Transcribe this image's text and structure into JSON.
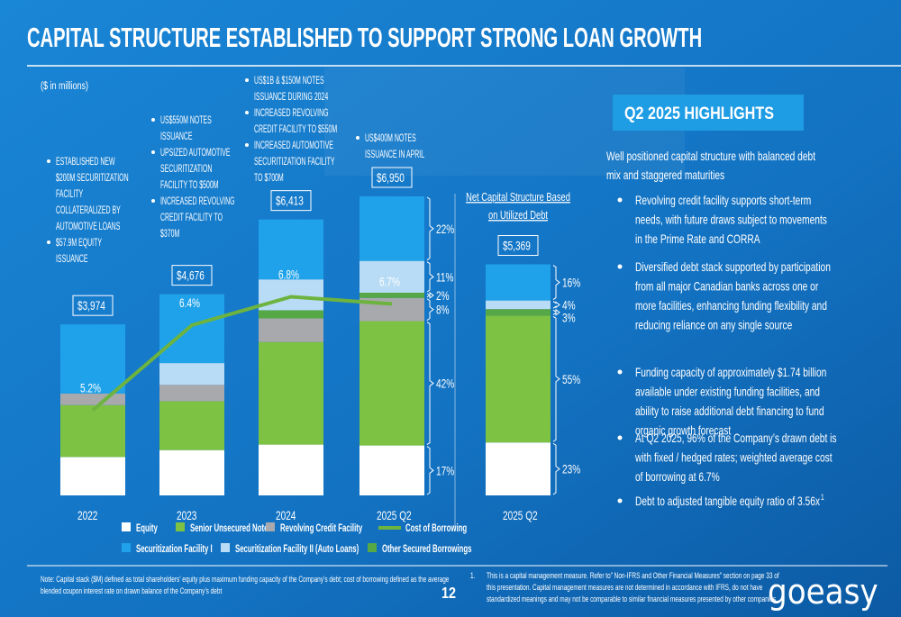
{
  "title": "CAPITAL STRUCTURE ESTABLISHED TO SUPPORT STRONG LOAN GROWTH",
  "units_note": "($ in millions)",
  "chart_data": [
    {
      "type": "bar",
      "stacked": true,
      "categories": [
        "2022",
        "2023",
        "2024",
        "2025 Q2"
      ],
      "series": [
        {
          "name": "Equity",
          "color": "#ffffff",
          "values": [
            893,
            1053,
            1181,
            1160
          ],
          "share_labels": [
            null,
            null,
            null,
            "17%"
          ]
        },
        {
          "name": "Senior Unsecured Note",
          "color": "#7dc242",
          "values": [
            1206,
            1137,
            2384,
            2890
          ],
          "share_labels": [
            null,
            null,
            null,
            "42%"
          ]
        },
        {
          "name": "Revolving Credit Facility",
          "color": "#a7a9ac",
          "values": [
            268,
            379,
            548,
            540
          ],
          "share_labels": [
            null,
            null,
            null,
            "8%"
          ]
        },
        {
          "name": "Other Secured Borrowings",
          "color": "#56a847",
          "values": [
            0,
            0,
            190,
            120
          ],
          "share_labels": [
            null,
            null,
            null,
            "2%"
          ]
        },
        {
          "name": "Securitization Facility II (Auto Loans)",
          "color": "#b8dcf5",
          "values": [
            0,
            506,
            717,
            740
          ],
          "share_labels": [
            null,
            null,
            null,
            "11%"
          ]
        },
        {
          "name": "Securitization Facility I",
          "color": "#1fa2ea",
          "values": [
            1607,
            1601,
            1393,
            1500
          ],
          "share_labels": [
            null,
            null,
            null,
            "22%"
          ]
        }
      ],
      "totals": [
        3974,
        4676,
        6413,
        6950
      ],
      "total_labels": [
        "$3,974",
        "$4,676",
        "$6,413",
        "$6,950"
      ],
      "line": {
        "name": "Cost of Borrowing",
        "color": "#6db33f",
        "values": [
          5.2,
          6.4,
          6.8,
          6.7
        ],
        "value_labels": [
          "5.2%",
          "6.4%",
          "6.8%",
          "6.7%"
        ]
      },
      "annotations": [
        [
          [
            "ESTABLISHED NEW",
            "$200M  SECURITIZATION",
            "FACILITY",
            "COLLATERALIZED BY",
            "AUTOMOTIVE LOANS"
          ],
          [
            "$57.9M EQUITY",
            "ISSUANCE"
          ]
        ],
        [
          [
            "US$550M NOTES",
            "ISSUANCE"
          ],
          [
            "UPSIZED AUTOMOTIVE",
            "SECURITIZATION",
            "FACILITY TO $500M"
          ],
          [
            "INCREASED REVOLVING",
            "CREDIT FACILITY TO",
            "$370M"
          ]
        ],
        [
          [
            "US$1B & $150M NOTES",
            "ISSUANCE DURING 2024"
          ],
          [
            "INCREASED REVOLVING",
            "CREDIT FACILITY TO $550M"
          ],
          [
            "INCREASED AUTOMOTIVE",
            "SECURITIZATION FACILITY",
            "TO $700M"
          ]
        ],
        [
          [
            "US$400M NOTES",
            "ISSUANCE IN APRIL"
          ]
        ]
      ]
    },
    {
      "type": "bar",
      "stacked": true,
      "title": [
        "Net Capital Structure Based",
        "on Utilized Debt"
      ],
      "categories": [
        "2025 Q2"
      ],
      "series": [
        {
          "name": "Equity",
          "color": "#ffffff",
          "values": [
            1230
          ],
          "share_labels": [
            "23%"
          ]
        },
        {
          "name": "Senior Unsecured Note",
          "color": "#7dc242",
          "values": [
            2950
          ],
          "share_labels": [
            "55%"
          ]
        },
        {
          "name": "Other Secured Borrowings",
          "color": "#56a847",
          "values": [
            150
          ],
          "share_labels": [
            "3%"
          ]
        },
        {
          "name": "Securitization Facility II (Auto Loans)",
          "color": "#b8dcf5",
          "values": [
            200
          ],
          "share_labels": [
            "4%"
          ]
        },
        {
          "name": "Securitization Facility I",
          "color": "#1fa2ea",
          "values": [
            839
          ],
          "share_labels": [
            "16%"
          ]
        }
      ],
      "totals": [
        5369
      ],
      "total_labels": [
        "$5,369"
      ]
    }
  ],
  "highlights": {
    "heading": "Q2 2025 HIGHLIGHTS",
    "intro": [
      "Well positioned capital structure with balanced debt",
      "mix and staggered maturities"
    ],
    "bullets": [
      [
        "Revolving credit facility supports short-term",
        "needs, with future draws subject to movements",
        "in the Prime Rate and CORRA"
      ],
      [
        "Diversified debt stack supported by participation",
        "from all major Canadian banks across one or",
        "more facilities, enhancing funding flexibility and",
        "reducing reliance on any single source"
      ],
      [
        "Funding capacity of approximately $1.74 billion",
        "available under existing funding facilities, and",
        "ability to raise additional debt financing to fund",
        "organic growth forecast"
      ],
      [
        "At Q2 2025, 96% of the Company’s drawn debt is",
        "with fixed / hedged rates; weighted average cost",
        "of borrowing at 6.7%"
      ],
      [
        "Debt to adjusted tangible equity ratio of 3.56x"
      ]
    ],
    "footnote_ref": "1"
  },
  "footer": {
    "note": [
      "Note: Capital stack ($M) defined as total shareholders’ equity plus maximum funding capacity of the Company’s debt; cost of borrowing defined as the average",
      "blended coupon interest rate on drawn balance of the Company’s debt"
    ],
    "page": "12",
    "footnote_marker": "1.",
    "footnote": [
      "This is a capital management measure. Refer to” Non-IFRS and Other Financial Measures” section on page 33 of",
      "this presentation. Capital management measures are not determined in accordance with IFRS, do not have",
      "standardized meanings and may not be comparable to similar financial measures presented by other companies"
    ],
    "logo": "goeasy"
  }
}
